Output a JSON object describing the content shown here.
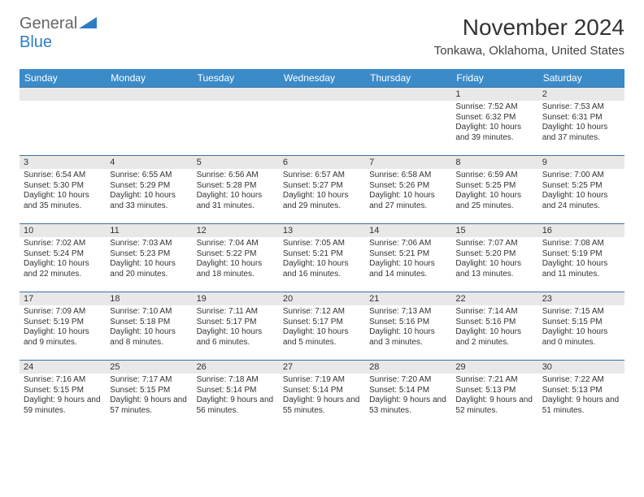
{
  "logo": {
    "general": "General",
    "blue": "Blue"
  },
  "title": "November 2024",
  "location": "Tonkawa, Oklahoma, United States",
  "colors": {
    "header_bg": "#3b8bc9",
    "header_text": "#ffffff",
    "daynum_bg": "#e8e8e8",
    "row_border": "#3b6fa0",
    "logo_blue": "#2c7dc4",
    "logo_gray": "#666666"
  },
  "daynames": [
    "Sunday",
    "Monday",
    "Tuesday",
    "Wednesday",
    "Thursday",
    "Friday",
    "Saturday"
  ],
  "weeks": [
    [
      {
        "n": "",
        "sr": "",
        "ss": "",
        "dl": ""
      },
      {
        "n": "",
        "sr": "",
        "ss": "",
        "dl": ""
      },
      {
        "n": "",
        "sr": "",
        "ss": "",
        "dl": ""
      },
      {
        "n": "",
        "sr": "",
        "ss": "",
        "dl": ""
      },
      {
        "n": "",
        "sr": "",
        "ss": "",
        "dl": ""
      },
      {
        "n": "1",
        "sr": "Sunrise: 7:52 AM",
        "ss": "Sunset: 6:32 PM",
        "dl": "Daylight: 10 hours and 39 minutes."
      },
      {
        "n": "2",
        "sr": "Sunrise: 7:53 AM",
        "ss": "Sunset: 6:31 PM",
        "dl": "Daylight: 10 hours and 37 minutes."
      }
    ],
    [
      {
        "n": "3",
        "sr": "Sunrise: 6:54 AM",
        "ss": "Sunset: 5:30 PM",
        "dl": "Daylight: 10 hours and 35 minutes."
      },
      {
        "n": "4",
        "sr": "Sunrise: 6:55 AM",
        "ss": "Sunset: 5:29 PM",
        "dl": "Daylight: 10 hours and 33 minutes."
      },
      {
        "n": "5",
        "sr": "Sunrise: 6:56 AM",
        "ss": "Sunset: 5:28 PM",
        "dl": "Daylight: 10 hours and 31 minutes."
      },
      {
        "n": "6",
        "sr": "Sunrise: 6:57 AM",
        "ss": "Sunset: 5:27 PM",
        "dl": "Daylight: 10 hours and 29 minutes."
      },
      {
        "n": "7",
        "sr": "Sunrise: 6:58 AM",
        "ss": "Sunset: 5:26 PM",
        "dl": "Daylight: 10 hours and 27 minutes."
      },
      {
        "n": "8",
        "sr": "Sunrise: 6:59 AM",
        "ss": "Sunset: 5:25 PM",
        "dl": "Daylight: 10 hours and 25 minutes."
      },
      {
        "n": "9",
        "sr": "Sunrise: 7:00 AM",
        "ss": "Sunset: 5:25 PM",
        "dl": "Daylight: 10 hours and 24 minutes."
      }
    ],
    [
      {
        "n": "10",
        "sr": "Sunrise: 7:02 AM",
        "ss": "Sunset: 5:24 PM",
        "dl": "Daylight: 10 hours and 22 minutes."
      },
      {
        "n": "11",
        "sr": "Sunrise: 7:03 AM",
        "ss": "Sunset: 5:23 PM",
        "dl": "Daylight: 10 hours and 20 minutes."
      },
      {
        "n": "12",
        "sr": "Sunrise: 7:04 AM",
        "ss": "Sunset: 5:22 PM",
        "dl": "Daylight: 10 hours and 18 minutes."
      },
      {
        "n": "13",
        "sr": "Sunrise: 7:05 AM",
        "ss": "Sunset: 5:21 PM",
        "dl": "Daylight: 10 hours and 16 minutes."
      },
      {
        "n": "14",
        "sr": "Sunrise: 7:06 AM",
        "ss": "Sunset: 5:21 PM",
        "dl": "Daylight: 10 hours and 14 minutes."
      },
      {
        "n": "15",
        "sr": "Sunrise: 7:07 AM",
        "ss": "Sunset: 5:20 PM",
        "dl": "Daylight: 10 hours and 13 minutes."
      },
      {
        "n": "16",
        "sr": "Sunrise: 7:08 AM",
        "ss": "Sunset: 5:19 PM",
        "dl": "Daylight: 10 hours and 11 minutes."
      }
    ],
    [
      {
        "n": "17",
        "sr": "Sunrise: 7:09 AM",
        "ss": "Sunset: 5:19 PM",
        "dl": "Daylight: 10 hours and 9 minutes."
      },
      {
        "n": "18",
        "sr": "Sunrise: 7:10 AM",
        "ss": "Sunset: 5:18 PM",
        "dl": "Daylight: 10 hours and 8 minutes."
      },
      {
        "n": "19",
        "sr": "Sunrise: 7:11 AM",
        "ss": "Sunset: 5:17 PM",
        "dl": "Daylight: 10 hours and 6 minutes."
      },
      {
        "n": "20",
        "sr": "Sunrise: 7:12 AM",
        "ss": "Sunset: 5:17 PM",
        "dl": "Daylight: 10 hours and 5 minutes."
      },
      {
        "n": "21",
        "sr": "Sunrise: 7:13 AM",
        "ss": "Sunset: 5:16 PM",
        "dl": "Daylight: 10 hours and 3 minutes."
      },
      {
        "n": "22",
        "sr": "Sunrise: 7:14 AM",
        "ss": "Sunset: 5:16 PM",
        "dl": "Daylight: 10 hours and 2 minutes."
      },
      {
        "n": "23",
        "sr": "Sunrise: 7:15 AM",
        "ss": "Sunset: 5:15 PM",
        "dl": "Daylight: 10 hours and 0 minutes."
      }
    ],
    [
      {
        "n": "24",
        "sr": "Sunrise: 7:16 AM",
        "ss": "Sunset: 5:15 PM",
        "dl": "Daylight: 9 hours and 59 minutes."
      },
      {
        "n": "25",
        "sr": "Sunrise: 7:17 AM",
        "ss": "Sunset: 5:15 PM",
        "dl": "Daylight: 9 hours and 57 minutes."
      },
      {
        "n": "26",
        "sr": "Sunrise: 7:18 AM",
        "ss": "Sunset: 5:14 PM",
        "dl": "Daylight: 9 hours and 56 minutes."
      },
      {
        "n": "27",
        "sr": "Sunrise: 7:19 AM",
        "ss": "Sunset: 5:14 PM",
        "dl": "Daylight: 9 hours and 55 minutes."
      },
      {
        "n": "28",
        "sr": "Sunrise: 7:20 AM",
        "ss": "Sunset: 5:14 PM",
        "dl": "Daylight: 9 hours and 53 minutes."
      },
      {
        "n": "29",
        "sr": "Sunrise: 7:21 AM",
        "ss": "Sunset: 5:13 PM",
        "dl": "Daylight: 9 hours and 52 minutes."
      },
      {
        "n": "30",
        "sr": "Sunrise: 7:22 AM",
        "ss": "Sunset: 5:13 PM",
        "dl": "Daylight: 9 hours and 51 minutes."
      }
    ]
  ]
}
